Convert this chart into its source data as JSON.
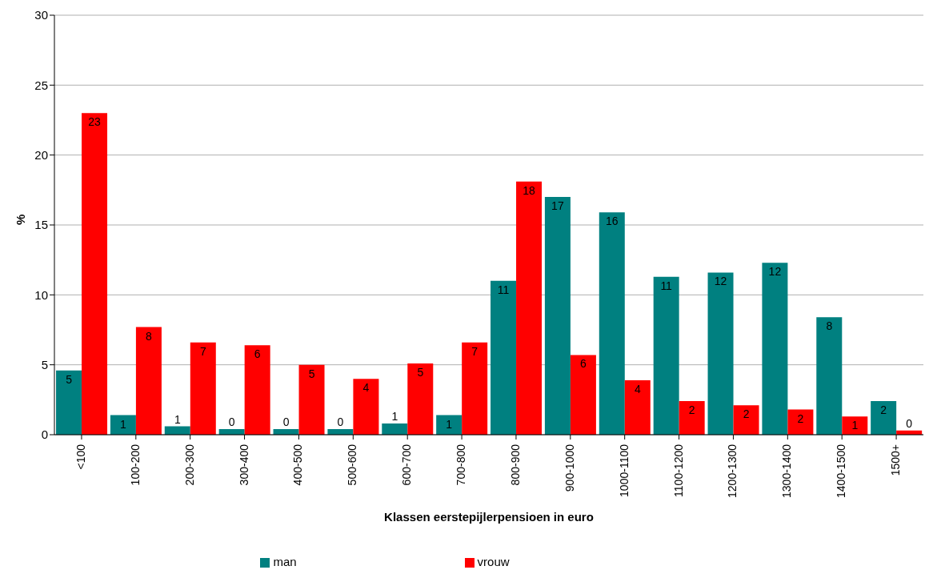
{
  "chart_data": {
    "type": "bar",
    "xlabel": "Klassen eerstepijlerpensioen in euro",
    "ylabel": "%",
    "categories": [
      "<100",
      "100-200",
      "200-300",
      "300-400",
      "400-500",
      "500-600",
      "600-700",
      "700-800",
      "800-900",
      "900-1000",
      "1000-1100",
      "1100-1200",
      "1200-1300",
      "1300-1400",
      "1400-1500",
      "1500+"
    ],
    "series": [
      {
        "name": "man",
        "color": "#008080",
        "values": [
          4.6,
          1.4,
          0.6,
          0.4,
          0.4,
          0.4,
          0.8,
          1.4,
          11.0,
          17.0,
          15.9,
          11.3,
          11.6,
          12.3,
          8.4,
          2.4
        ],
        "value_labels": [
          "5",
          "1",
          "1",
          "0",
          "0",
          "0",
          "1",
          "1",
          "11",
          "17",
          "16",
          "11",
          "12",
          "12",
          "8",
          "2"
        ]
      },
      {
        "name": "vrouw",
        "color": "#ff0000",
        "values": [
          23.0,
          7.7,
          6.6,
          6.4,
          5.0,
          4.0,
          5.1,
          6.6,
          18.1,
          5.7,
          3.9,
          2.4,
          2.1,
          1.8,
          1.3,
          0.3
        ],
        "value_labels": [
          "23",
          "8",
          "7",
          "6",
          "5",
          "4",
          "5",
          "7",
          "18",
          "6",
          "4",
          "2",
          "2",
          "2",
          "1",
          "0"
        ]
      }
    ],
    "ylim": [
      0,
      30
    ],
    "yticks": [
      0,
      5,
      10,
      15,
      20,
      25,
      30
    ],
    "grid": "y",
    "legend": "bottom"
  }
}
